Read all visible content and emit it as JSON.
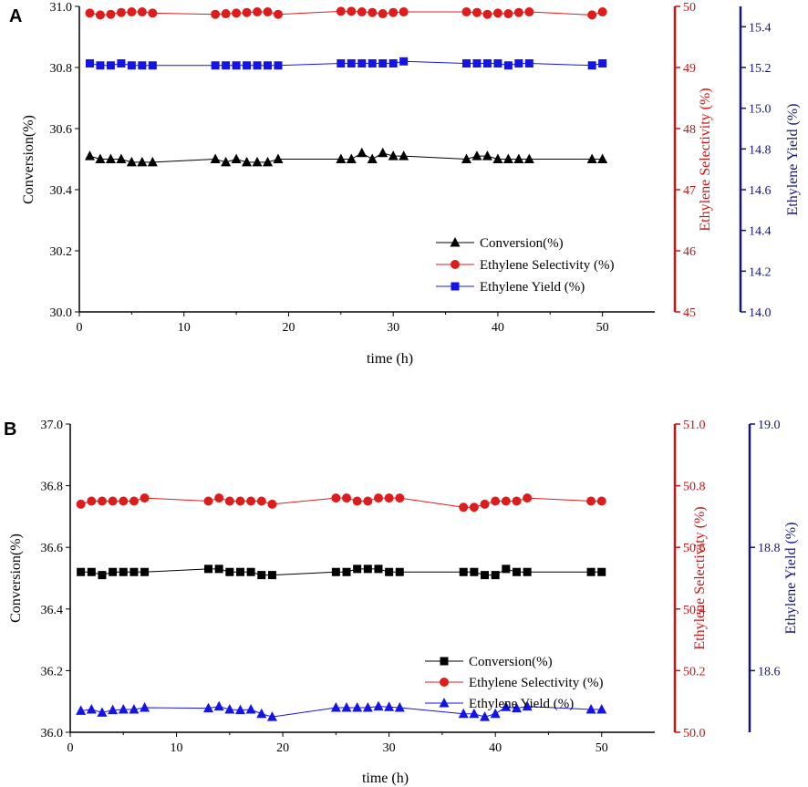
{
  "colors": {
    "black": "#000000",
    "red": "#dd1c1c",
    "blue": "#1414e6",
    "darkblue": "#141478",
    "axis_red": "#c81414"
  },
  "chart_data": [
    {
      "type": "line",
      "panel_label": "A",
      "xlabel": "time (h)",
      "ylabel_left": "Conversion(%)",
      "ylabel_right1": "Ethylene Selectivity (%)",
      "ylabel_right2": "Ethylene Yield (%)",
      "xlim": [
        0,
        55
      ],
      "xticks": [
        0,
        10,
        20,
        30,
        40,
        50
      ],
      "axes": {
        "left": {
          "lim": [
            30.0,
            31.0
          ],
          "ticks": [
            "30.0",
            "30.2",
            "30.4",
            "30.6",
            "30.8",
            "31.0"
          ]
        },
        "right1": {
          "lim": [
            45,
            50
          ],
          "ticks": [
            "45",
            "46",
            "47",
            "48",
            "49",
            "50"
          ]
        },
        "right2": {
          "lim": [
            14.0,
            15.5
          ],
          "ticks": [
            "14.0",
            "14.2",
            "14.4",
            "14.6",
            "14.8",
            "15.0",
            "15.2",
            "15.4"
          ]
        }
      },
      "series": [
        {
          "name": "Conversion(%)",
          "axis": "left",
          "marker": "triangle",
          "color": "#000000",
          "x": [
            1,
            2,
            3,
            4,
            5,
            6,
            7,
            13,
            14,
            15,
            16,
            17,
            18,
            19,
            25,
            26,
            27,
            28,
            29,
            30,
            31,
            37,
            38,
            39,
            40,
            41,
            42,
            43,
            49,
            50
          ],
          "y": [
            30.51,
            30.5,
            30.5,
            30.5,
            30.49,
            30.49,
            30.49,
            30.5,
            30.49,
            30.5,
            30.49,
            30.49,
            30.49,
            30.5,
            30.5,
            30.5,
            30.52,
            30.5,
            30.52,
            30.51,
            30.51,
            30.5,
            30.51,
            30.51,
            30.5,
            30.5,
            30.5,
            30.5,
            30.5,
            30.5
          ]
        },
        {
          "name": "Ethylene Selectivity (%)",
          "axis": "right1",
          "marker": "circle",
          "color": "#dd1c1c",
          "x": [
            1,
            2,
            3,
            4,
            5,
            6,
            7,
            13,
            14,
            15,
            16,
            17,
            18,
            19,
            25,
            26,
            27,
            28,
            29,
            30,
            31,
            37,
            38,
            39,
            40,
            41,
            42,
            43,
            49,
            50
          ],
          "y": [
            49.89,
            49.86,
            49.87,
            49.9,
            49.91,
            49.91,
            49.89,
            49.87,
            49.88,
            49.89,
            49.9,
            49.91,
            49.91,
            49.87,
            49.92,
            49.92,
            49.91,
            49.9,
            49.88,
            49.9,
            49.91,
            49.91,
            49.9,
            49.87,
            49.89,
            49.88,
            49.9,
            49.91,
            49.86,
            49.91
          ]
        },
        {
          "name": "Ethylene Yield (%)",
          "axis": "right2",
          "marker": "square",
          "color": "#1414e6",
          "x": [
            1,
            2,
            3,
            4,
            5,
            6,
            7,
            13,
            14,
            15,
            16,
            17,
            18,
            19,
            25,
            26,
            27,
            28,
            29,
            30,
            31,
            37,
            38,
            39,
            40,
            41,
            42,
            43,
            49,
            50
          ],
          "y": [
            15.22,
            15.21,
            15.21,
            15.22,
            15.21,
            15.21,
            15.21,
            15.21,
            15.21,
            15.21,
            15.21,
            15.21,
            15.21,
            15.21,
            15.22,
            15.22,
            15.22,
            15.22,
            15.22,
            15.22,
            15.23,
            15.22,
            15.22,
            15.22,
            15.22,
            15.21,
            15.22,
            15.22,
            15.21,
            15.22
          ]
        }
      ],
      "legend": {
        "position": "lower-right",
        "entries": [
          "Conversion(%)",
          "Ethylene Selectivity (%)",
          "Ethylene Yield (%)"
        ]
      }
    },
    {
      "type": "line",
      "panel_label": "B",
      "xlabel": "time (h)",
      "ylabel_left": "Conversion(%)",
      "ylabel_right1": "Ethylene Selectivity (%)",
      "ylabel_right2": "Ethylene Yield (%)",
      "xlim": [
        0,
        55
      ],
      "xticks": [
        0,
        10,
        20,
        30,
        40,
        50
      ],
      "axes": {
        "left": {
          "lim": [
            36.0,
            37.0
          ],
          "ticks": [
            "36.0",
            "36.2",
            "36.4",
            "36.6",
            "36.8",
            "37.0"
          ]
        },
        "right1": {
          "lim": [
            50.0,
            51.0
          ],
          "ticks": [
            "50.0",
            "50.2",
            "50.4",
            "50.6",
            "50.8",
            "51.0"
          ]
        },
        "right2": {
          "lim": [
            18.5,
            19.0
          ],
          "ticks": [
            "18.6",
            "18.8",
            "19.0"
          ]
        }
      },
      "series": [
        {
          "name": "Conversion(%)",
          "axis": "left",
          "marker": "square",
          "color": "#000000",
          "x": [
            1,
            2,
            3,
            4,
            5,
            6,
            7,
            13,
            14,
            15,
            16,
            17,
            18,
            19,
            25,
            26,
            27,
            28,
            29,
            30,
            31,
            37,
            38,
            39,
            40,
            41,
            42,
            43,
            49,
            50
          ],
          "y": [
            36.52,
            36.52,
            36.51,
            36.52,
            36.52,
            36.52,
            36.52,
            36.53,
            36.53,
            36.52,
            36.52,
            36.52,
            36.51,
            36.51,
            36.52,
            36.52,
            36.53,
            36.53,
            36.53,
            36.52,
            36.52,
            36.52,
            36.52,
            36.51,
            36.51,
            36.53,
            36.52,
            36.52,
            36.52,
            36.52
          ]
        },
        {
          "name": "Ethylene Selectivity (%)",
          "axis": "right1",
          "marker": "circle",
          "color": "#dd1c1c",
          "x": [
            1,
            2,
            3,
            4,
            5,
            6,
            7,
            13,
            14,
            15,
            16,
            17,
            18,
            19,
            25,
            26,
            27,
            28,
            29,
            30,
            31,
            37,
            38,
            39,
            40,
            41,
            42,
            43,
            49,
            50
          ],
          "y": [
            50.74,
            50.75,
            50.75,
            50.75,
            50.75,
            50.75,
            50.76,
            50.75,
            50.76,
            50.75,
            50.75,
            50.75,
            50.75,
            50.74,
            50.76,
            50.76,
            50.75,
            50.75,
            50.76,
            50.76,
            50.76,
            50.73,
            50.73,
            50.74,
            50.75,
            50.75,
            50.75,
            50.76,
            50.75,
            50.75
          ]
        },
        {
          "name": "Ethylene Yield (%)",
          "axis": "right2",
          "marker": "triangle",
          "color": "#1414e6",
          "x": [
            1,
            2,
            3,
            4,
            5,
            6,
            7,
            13,
            14,
            15,
            16,
            17,
            18,
            19,
            25,
            26,
            27,
            28,
            29,
            30,
            31,
            37,
            38,
            39,
            40,
            41,
            42,
            43,
            49,
            50
          ],
          "y": [
            18.535,
            18.537,
            18.532,
            18.536,
            18.537,
            18.537,
            18.54,
            18.539,
            18.542,
            18.537,
            18.536,
            18.537,
            18.53,
            18.525,
            18.54,
            18.54,
            18.54,
            18.54,
            18.542,
            18.541,
            18.54,
            18.53,
            18.53,
            18.525,
            18.53,
            18.541,
            18.539,
            18.542,
            18.537,
            18.537
          ]
        }
      ],
      "legend": {
        "position": "lower-right",
        "entries": [
          "Conversion(%)",
          "Ethylene Selectivity (%)",
          "Ethylene Yield (%)"
        ]
      }
    }
  ]
}
